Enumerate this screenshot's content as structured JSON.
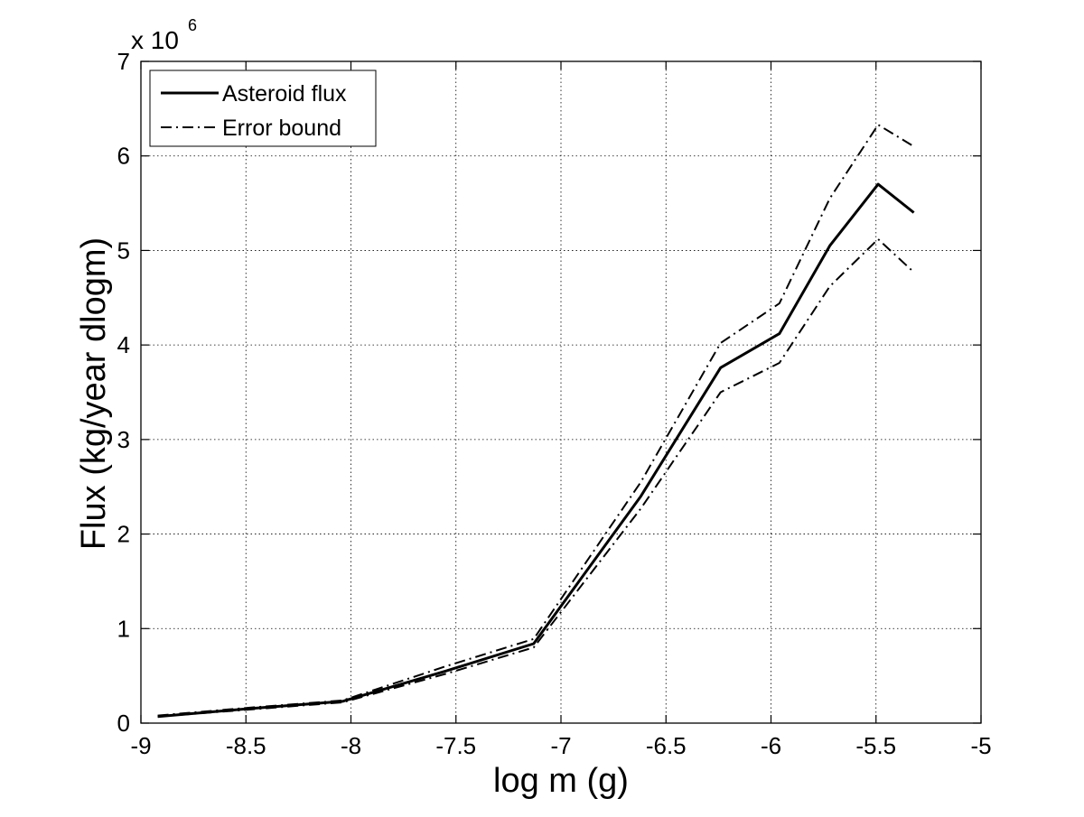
{
  "chart_data": {
    "type": "line",
    "title": "",
    "xlabel": "log m (g)",
    "ylabel": "Flux (kg/year dlogm)",
    "y_multiplier": {
      "base": "x 10",
      "exponent": "6"
    },
    "xlim": [
      -9,
      -5
    ],
    "ylim": [
      0,
      7
    ],
    "x_ticks": [
      -9,
      -8.5,
      -8,
      -7.5,
      -7,
      -6.5,
      -6,
      -5.5,
      -5
    ],
    "x_tick_labels": [
      "-9",
      "-8.5",
      "-8",
      "-7.5",
      "-7",
      "-6.5",
      "-6",
      "-5.5",
      "-5"
    ],
    "y_ticks": [
      0,
      1,
      2,
      3,
      4,
      5,
      6,
      7
    ],
    "y_tick_labels": [
      "0",
      "1",
      "2",
      "3",
      "4",
      "5",
      "6",
      "7"
    ],
    "grid": true,
    "legend_position": "top-left",
    "series": [
      {
        "name": "Asteroid flux",
        "style": "solid",
        "color": "#000000",
        "x": [
          -8.92,
          -8.5,
          -8.04,
          -7.55,
          -7.13,
          -6.62,
          -6.24,
          -5.96,
          -5.72,
          -5.49,
          -5.32
        ],
        "y": [
          0.07,
          0.15,
          0.23,
          0.55,
          0.84,
          2.4,
          3.76,
          4.12,
          5.05,
          5.7,
          5.4
        ]
      },
      {
        "name": "Error bound",
        "style": "dashdot",
        "color": "#000000",
        "x": [
          -8.92,
          -8.5,
          -8.04,
          -7.55,
          -7.13,
          -6.62,
          -6.24,
          -5.96,
          -5.72,
          -5.49,
          -5.32
        ],
        "y": [
          0.08,
          0.16,
          0.24,
          0.6,
          0.89,
          2.55,
          4.02,
          4.44,
          5.55,
          6.33,
          6.1
        ]
      },
      {
        "style": "dashdot",
        "color": "#000000",
        "x": [
          -8.92,
          -8.5,
          -8.04,
          -7.55,
          -7.13,
          -6.62,
          -6.24,
          -5.96,
          -5.72,
          -5.49,
          -5.32
        ],
        "y": [
          0.07,
          0.14,
          0.22,
          0.52,
          0.8,
          2.27,
          3.5,
          3.81,
          4.62,
          5.12,
          4.77
        ]
      }
    ]
  }
}
